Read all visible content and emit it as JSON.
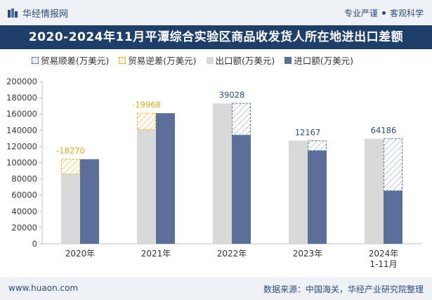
{
  "header": {
    "brand": "华经情报网",
    "slogan_left": "专业严谨",
    "slogan_right": "客观科学",
    "brand_color": "#2c4a7a"
  },
  "title": "2020-2024年11月平潭综合实验区商品收发货人所在地进出口差额",
  "footer": {
    "site": "www.huaon.com",
    "source": "数据来源：中国海关，华经产业研究院整理"
  },
  "legend": {
    "surplus": "贸易顺差(万美元)",
    "deficit": "贸易逆差(万美元)",
    "export": "出口额(万美元)",
    "import": "进口额(万美元)"
  },
  "chart_data": {
    "type": "bar",
    "categories": [
      "2020年",
      "2021年",
      "2022年",
      "2023年",
      "2024年\n1-11月"
    ],
    "series": [
      {
        "name": "出口额(万美元)",
        "values": [
          86000,
          141000,
          173000,
          127000,
          129500
        ],
        "color": "#d9d9d9"
      },
      {
        "name": "进口额(万美元)",
        "values": [
          104270,
          160968,
          133972,
          114833,
          65314
        ],
        "color": "#5a6f9a"
      }
    ],
    "balance": [
      -18270,
      -19968,
      39028,
      12167,
      64186
    ],
    "balance_labels": [
      "-18270",
      "-19968",
      "39028",
      "12167",
      "64186"
    ],
    "ylim": [
      0,
      200000
    ],
    "yticks": [
      0,
      20000,
      40000,
      60000,
      80000,
      100000,
      120000,
      140000,
      160000,
      180000,
      200000
    ],
    "ytick_labels": [
      "0",
      "20000",
      "40000",
      "60000",
      "80000",
      "100000",
      "120000",
      "140000",
      "160000",
      "180000",
      "200000"
    ],
    "colors": {
      "surplus": "#4a6fa5",
      "deficit": "#e6b422"
    },
    "legend_position": "top-left"
  }
}
